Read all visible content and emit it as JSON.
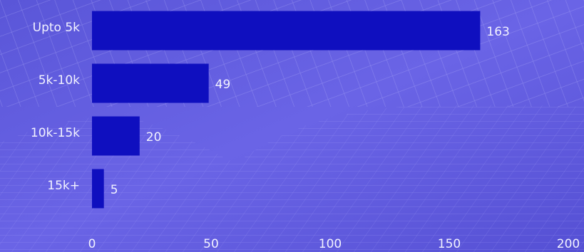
{
  "chart_data": {
    "type": "bar",
    "orientation": "horizontal",
    "categories": [
      "Upto 5k",
      "5k-10k",
      "10k-15k",
      "15k+"
    ],
    "values": [
      163,
      49,
      20,
      5
    ],
    "color": "#0f0fbf",
    "xlim": [
      0,
      200
    ],
    "xticks": [
      0,
      50,
      100,
      150,
      200
    ],
    "grid": false
  }
}
